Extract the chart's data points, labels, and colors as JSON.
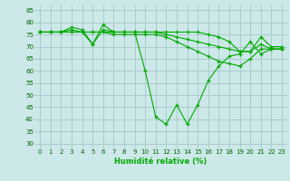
{
  "xlabel": "Humidité relative (%)",
  "bg_color": "#cce8e8",
  "grid_color": "#aacccc",
  "line_color": "#00aa00",
  "ylim": [
    28,
    87
  ],
  "xlim": [
    -0.5,
    23.5
  ],
  "yticks": [
    30,
    35,
    40,
    45,
    50,
    55,
    60,
    65,
    70,
    75,
    80,
    85
  ],
  "xticks": [
    0,
    1,
    2,
    3,
    4,
    5,
    6,
    7,
    8,
    9,
    10,
    11,
    12,
    13,
    14,
    15,
    16,
    17,
    18,
    19,
    20,
    21,
    22,
    23
  ],
  "series": [
    [
      76,
      76,
      76,
      77,
      76,
      71,
      77,
      76,
      76,
      76,
      76,
      76,
      76,
      76,
      76,
      76,
      75,
      74,
      72,
      68,
      68,
      74,
      70,
      70
    ],
    [
      76,
      76,
      76,
      78,
      77,
      71,
      79,
      76,
      76,
      76,
      60,
      41,
      38,
      46,
      38,
      46,
      56,
      62,
      66,
      67,
      72,
      67,
      69,
      69
    ],
    [
      76,
      76,
      76,
      76,
      76,
      76,
      76,
      75,
      75,
      75,
      75,
      75,
      74,
      72,
      70,
      68,
      66,
      64,
      63,
      62,
      65,
      69,
      69,
      69
    ],
    [
      76,
      76,
      76,
      76,
      76,
      76,
      76,
      76,
      76,
      76,
      76,
      76,
      75,
      74,
      73,
      72,
      71,
      70,
      69,
      68,
      68,
      71,
      69,
      69
    ]
  ]
}
